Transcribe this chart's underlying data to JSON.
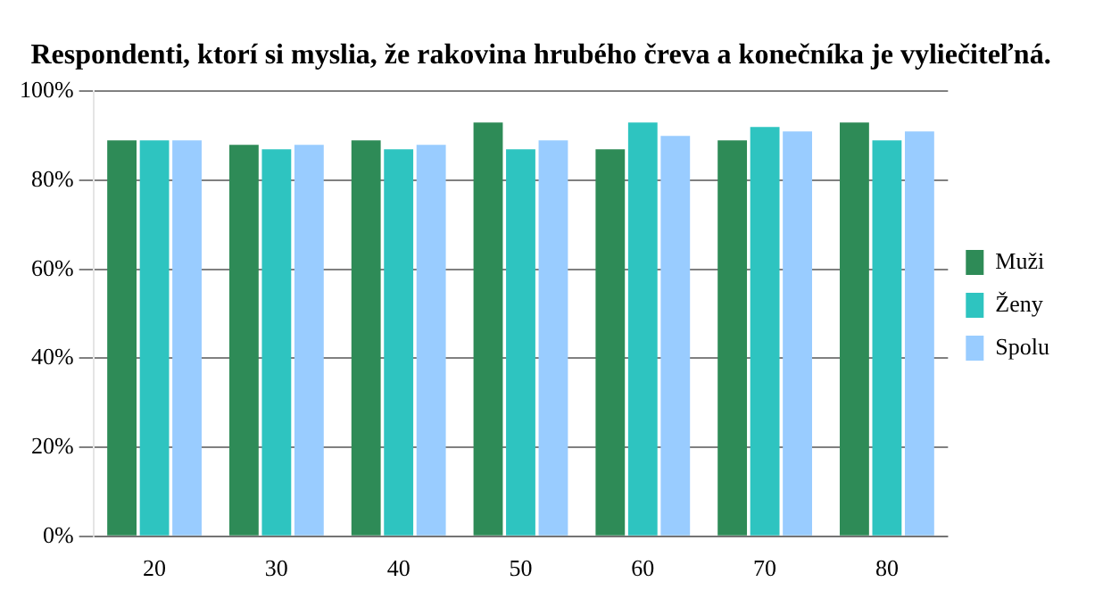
{
  "chart_data": {
    "type": "bar",
    "title": "Respondenti, ktorí si myslia, že rakovina hrubého čreva a konečníka je vyliečiteľná.",
    "categories": [
      "20",
      "30",
      "40",
      "50",
      "60",
      "70",
      "80"
    ],
    "series": [
      {
        "name": "Muži",
        "color": "#2e8b57",
        "values": [
          89,
          88,
          89,
          93,
          87,
          89,
          93
        ]
      },
      {
        "name": "Ženy",
        "color": "#2ec4c0",
        "values": [
          89,
          87,
          87,
          87,
          93,
          92,
          89
        ]
      },
      {
        "name": "Spolu",
        "color": "#99ccff",
        "values": [
          89,
          88,
          88,
          89,
          90,
          91,
          91
        ]
      }
    ],
    "ylim": [
      0,
      100
    ],
    "yticks": [
      {
        "value": 0,
        "label": "0%"
      },
      {
        "value": 20,
        "label": "20%"
      },
      {
        "value": 40,
        "label": "40%"
      },
      {
        "value": 60,
        "label": "60%"
      },
      {
        "value": 80,
        "label": "80%"
      },
      {
        "value": 100,
        "label": "100%"
      }
    ],
    "grid": "y",
    "legend": "right"
  }
}
